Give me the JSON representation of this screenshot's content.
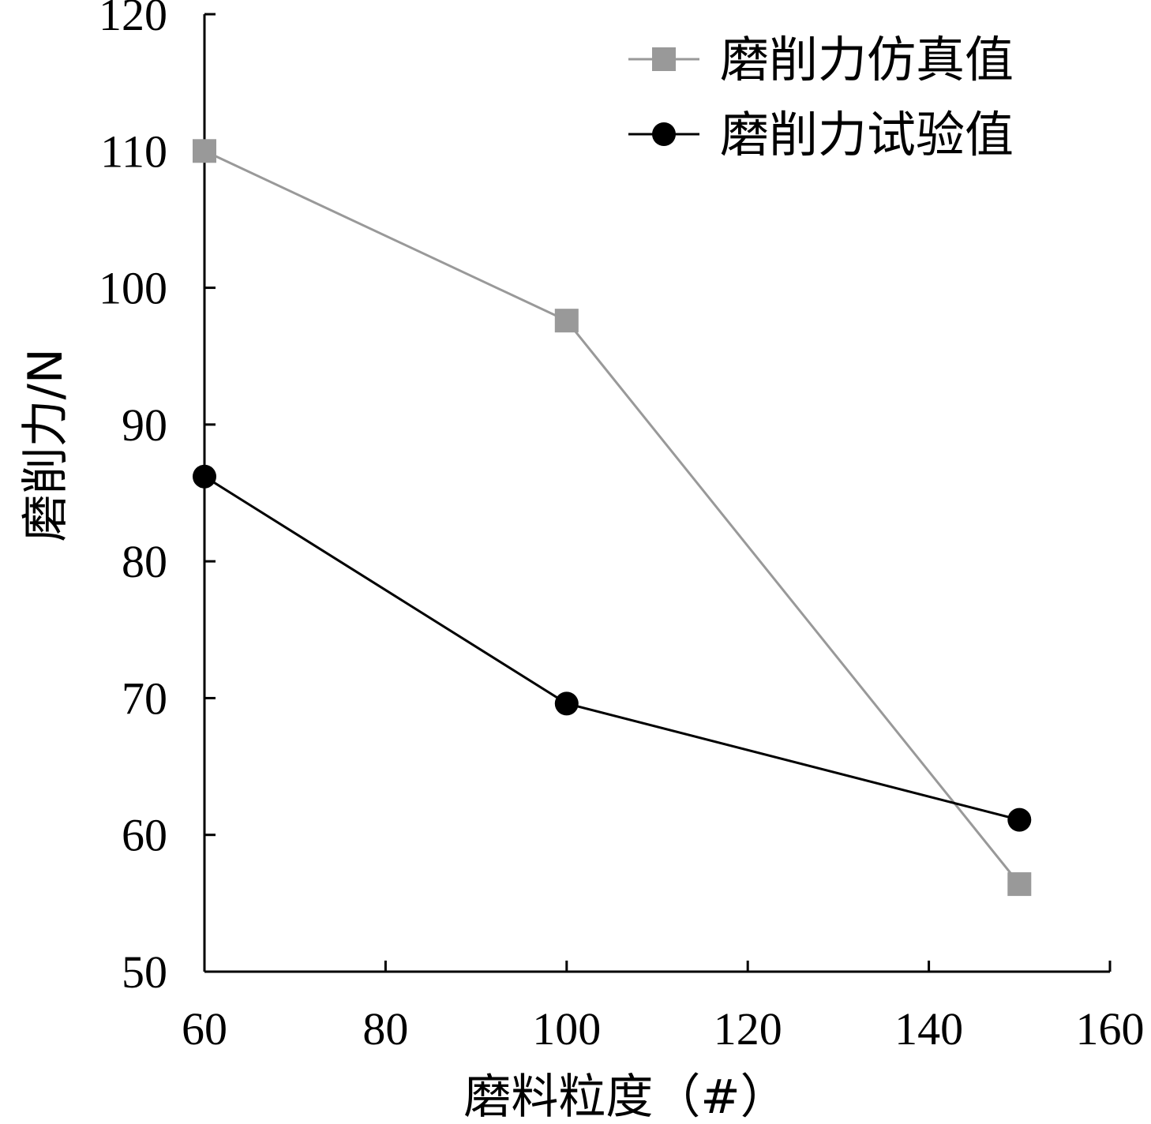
{
  "chart_data": {
    "type": "line",
    "title": "",
    "xlabel": "磨料粒度（#）",
    "ylabel": "磨削力/N",
    "xlim": [
      60,
      160
    ],
    "ylim": [
      50,
      120
    ],
    "xticks": [
      60,
      80,
      100,
      120,
      140,
      160
    ],
    "yticks": [
      50,
      60,
      70,
      80,
      90,
      100,
      110,
      120
    ],
    "grid": false,
    "legend_position": "top-right",
    "series": [
      {
        "name": "磨削力仿真值",
        "marker": "square",
        "color": "#999999",
        "x": [
          60,
          100,
          150
        ],
        "y": [
          110,
          97.6,
          56.4
        ]
      },
      {
        "name": "磨削力试验值",
        "marker": "circle",
        "color": "#000000",
        "x": [
          60,
          100,
          150
        ],
        "y": [
          86.2,
          69.6,
          61.1
        ]
      }
    ]
  }
}
